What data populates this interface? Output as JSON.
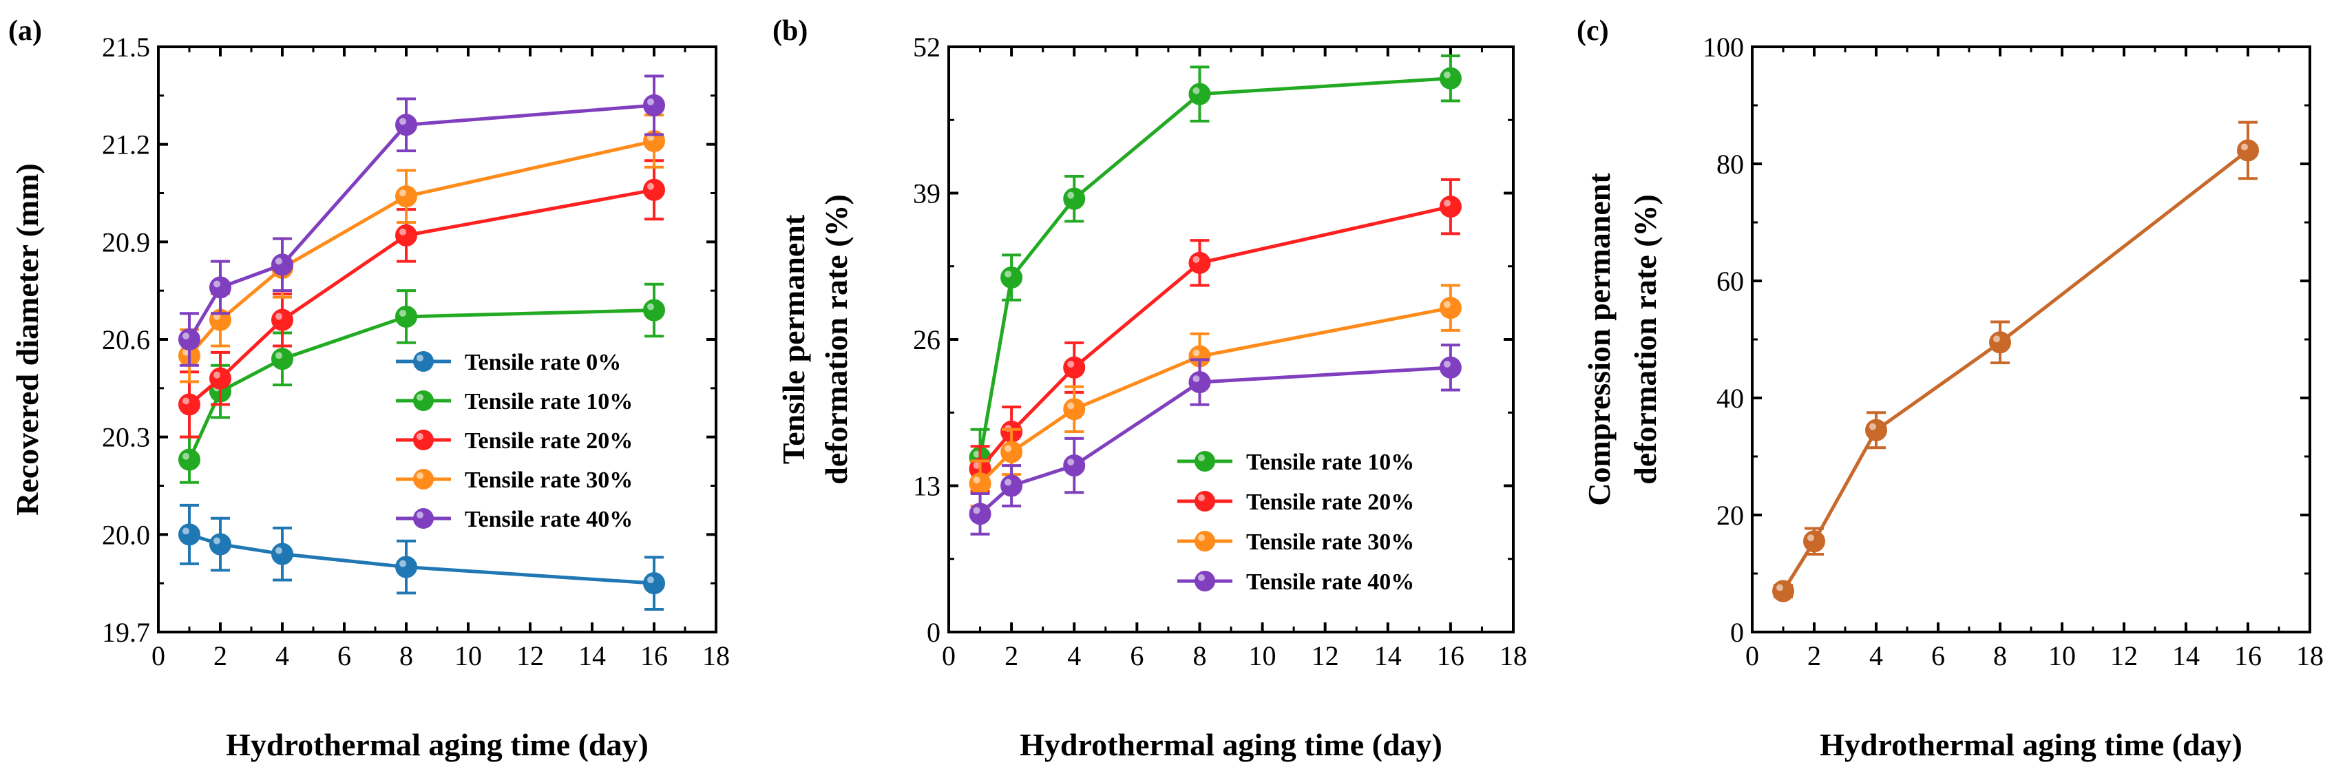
{
  "colors": {
    "tr0": "#1f77b4",
    "tr10": "#22aa22",
    "tr20": "#ff2020",
    "tr30": "#ff8c1a",
    "tr40": "#7f3fbf",
    "compression": "#c8692a"
  },
  "chart_data": [
    {
      "panel_label": "(a)",
      "type": "line",
      "title": "",
      "xlabel": "Hydrothermal aging time (day)",
      "ylabel": "Recovered diameter (mm)",
      "xlim": [
        0,
        18
      ],
      "ylim": [
        19.7,
        21.5
      ],
      "xticks": [
        0,
        2,
        4,
        6,
        8,
        10,
        12,
        14,
        16,
        18
      ],
      "yticks": [
        19.7,
        20.0,
        20.3,
        20.6,
        20.9,
        21.2,
        21.5
      ],
      "ytick_labels": [
        "19.7",
        "20.0",
        "20.3",
        "20.6",
        "20.9",
        "21.2",
        "21.5"
      ],
      "legend_position": "middle-right",
      "series": [
        {
          "name": "Tensile rate 0%",
          "color_key": "tr0",
          "x": [
            1,
            2,
            4,
            8,
            16
          ],
          "y": [
            20.0,
            19.97,
            19.94,
            19.9,
            19.85
          ],
          "err": [
            0.09,
            0.08,
            0.08,
            0.08,
            0.08
          ]
        },
        {
          "name": "Tensile rate 10%",
          "color_key": "tr10",
          "x": [
            1,
            2,
            4,
            8,
            16
          ],
          "y": [
            20.23,
            20.44,
            20.54,
            20.67,
            20.69
          ],
          "err": [
            0.07,
            0.08,
            0.08,
            0.08,
            0.08
          ]
        },
        {
          "name": "Tensile rate 20%",
          "color_key": "tr20",
          "x": [
            1,
            2,
            4,
            8,
            16
          ],
          "y": [
            20.4,
            20.48,
            20.66,
            20.92,
            21.06
          ],
          "err": [
            0.1,
            0.08,
            0.08,
            0.08,
            0.09
          ]
        },
        {
          "name": "Tensile rate 30%",
          "color_key": "tr30",
          "x": [
            1,
            2,
            4,
            8,
            16
          ],
          "y": [
            20.55,
            20.66,
            20.82,
            21.04,
            21.21
          ],
          "err": [
            0.08,
            0.08,
            0.09,
            0.08,
            0.08
          ]
        },
        {
          "name": "Tensile rate 40%",
          "color_key": "tr40",
          "x": [
            1,
            2,
            4,
            8,
            16
          ],
          "y": [
            20.6,
            20.76,
            20.83,
            21.26,
            21.32
          ],
          "err": [
            0.08,
            0.08,
            0.08,
            0.08,
            0.09
          ]
        }
      ]
    },
    {
      "panel_label": "(b)",
      "type": "line",
      "title": "",
      "xlabel": "Hydrothermal aging time (day)",
      "ylabel": "Tensile permanent deformation rate (%)",
      "ylabel_lines": [
        "Tensile permanent",
        "deformation rate (%)"
      ],
      "xlim": [
        0,
        18
      ],
      "ylim": [
        0,
        52
      ],
      "xticks": [
        0,
        2,
        4,
        6,
        8,
        10,
        12,
        14,
        16,
        18
      ],
      "yticks": [
        0,
        13,
        26,
        39,
        52
      ],
      "ytick_labels": [
        "0",
        "13",
        "26",
        "39",
        "52"
      ],
      "legend_position": "lower-right",
      "series": [
        {
          "name": "Tensile rate 10%",
          "color_key": "tr10",
          "x": [
            1,
            2,
            4,
            8,
            16
          ],
          "y": [
            15.5,
            31.5,
            38.5,
            47.8,
            49.2
          ],
          "err": [
            2.5,
            2.0,
            2.0,
            2.4,
            2.0
          ]
        },
        {
          "name": "Tensile rate 20%",
          "color_key": "tr20",
          "x": [
            1,
            2,
            4,
            8,
            16
          ],
          "y": [
            14.5,
            17.8,
            23.5,
            32.8,
            37.8
          ],
          "err": [
            2.0,
            2.2,
            2.2,
            2.0,
            2.4
          ]
        },
        {
          "name": "Tensile rate 30%",
          "color_key": "tr30",
          "x": [
            1,
            2,
            4,
            8,
            16
          ],
          "y": [
            13.2,
            16.0,
            19.8,
            24.5,
            28.8
          ],
          "err": [
            2.0,
            2.0,
            2.0,
            2.0,
            2.0
          ]
        },
        {
          "name": "Tensile rate 40%",
          "color_key": "tr40",
          "x": [
            1,
            2,
            4,
            8,
            16
          ],
          "y": [
            10.5,
            13.0,
            14.8,
            22.2,
            23.5
          ],
          "err": [
            1.8,
            1.8,
            2.4,
            2.0,
            2.0
          ]
        }
      ]
    },
    {
      "panel_label": "(c)",
      "type": "line",
      "title": "",
      "xlabel": "Hydrothermal aging time (day)",
      "ylabel": "Compression permanent deformation rate (%)",
      "ylabel_lines": [
        "Compression permanent",
        "deformation rate (%)"
      ],
      "xlim": [
        0,
        18
      ],
      "ylim": [
        0,
        100
      ],
      "xticks": [
        0,
        2,
        4,
        6,
        8,
        10,
        12,
        14,
        16,
        18
      ],
      "yticks": [
        0,
        20,
        40,
        60,
        80,
        100
      ],
      "ytick_labels": [
        "0",
        "20",
        "40",
        "60",
        "80",
        "100"
      ],
      "legend_position": "none",
      "series": [
        {
          "name": "Compression",
          "color_key": "compression",
          "x": [
            1,
            2,
            4,
            8,
            16
          ],
          "y": [
            7.0,
            15.5,
            34.5,
            49.5,
            82.3
          ],
          "err": [
            1.0,
            2.2,
            3.0,
            3.5,
            4.8
          ]
        }
      ]
    }
  ]
}
